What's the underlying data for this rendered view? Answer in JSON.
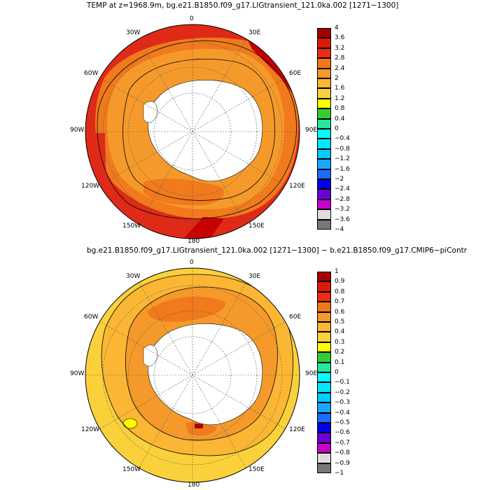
{
  "panel1": {
    "title": "TEMP at z=1968.9m, bg.e21.B1850.f09_g17.LIGtransient_121.0ka.002 [1271−1300]",
    "lon_labels": {
      "n": "0",
      "ne": "30E",
      "e1": "60E",
      "e": "90E",
      "se1": "120E",
      "se": "150E",
      "s": "180",
      "sw": "150W",
      "sw1": "120W",
      "w": "90W",
      "nw1": "60W",
      "nw": "30W"
    },
    "legend_ticks": [
      "4",
      "3.6",
      "3.2",
      "2.8",
      "2.4",
      "2",
      "1.6",
      "1.2",
      "0.8",
      "0.4",
      "0",
      "−0.4",
      "−0.8",
      "−1.2",
      "−1.6",
      "−2",
      "−2.4",
      "−2.8",
      "−3.2",
      "−3.6",
      "−4"
    ],
    "colors": {
      "r5": "#c80000",
      "r4": "#e02a18",
      "r3": "#f07a1c",
      "r2": "#f59a2a",
      "r1": "#fbb733",
      "land": "#ffffff"
    }
  },
  "panel2": {
    "title": "bg.e21.B1850.f09_g17.LIGtransient_121.0ka.002 [1271−1300] − b.e21.B1850.f09_g17.CMIP6−piContr",
    "lon_labels": {
      "n": "0",
      "ne": "30E",
      "e1": "60E",
      "e": "90E",
      "se1": "120E",
      "se": "150E",
      "s": "180",
      "sw": "150W",
      "sw1": "120W",
      "w": "90W",
      "nw1": "60W",
      "nw": "30W"
    },
    "legend_ticks": [
      "1",
      "0.9",
      "0.8",
      "0.7",
      "0.6",
      "0.5",
      "0.4",
      "0.3",
      "0.2",
      "0.1",
      "0",
      "−0.1",
      "−0.2",
      "−0.3",
      "−0.4",
      "−0.5",
      "−0.6",
      "−0.7",
      "−0.8",
      "−0.9",
      "−1"
    ]
  },
  "legend_colors": [
    "#a50000",
    "#dd1a0a",
    "#f02b12",
    "#f07818",
    "#f59a2a",
    "#fbb733",
    "#fad13a",
    "#ffff00",
    "#33cc33",
    "#22e8a0",
    "#00ffff",
    "#00e8ff",
    "#00ccff",
    "#1aa6ff",
    "#1a6cff",
    "#0000e8",
    "#6a00d6",
    "#c800c8",
    "#dddddd",
    "#777777"
  ]
}
